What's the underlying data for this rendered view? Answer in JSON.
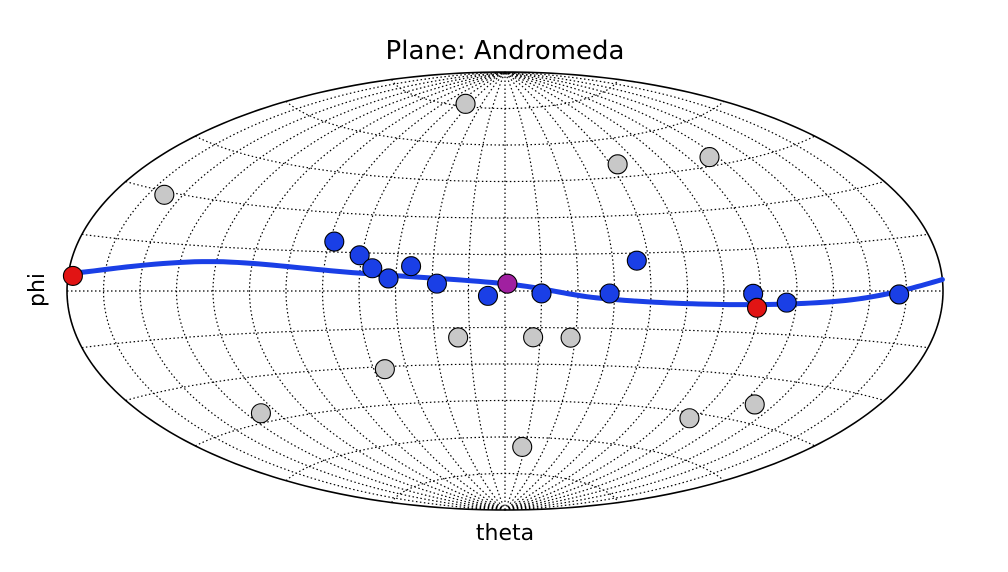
{
  "chart_data": {
    "type": "scatter",
    "projection": "aitoff",
    "title": "Plane: Andromeda",
    "xlabel": "theta",
    "ylabel": "phi",
    "xlim": [
      -180,
      180
    ],
    "ylim": [
      -90,
      90
    ],
    "grid": true,
    "grid_meridian_step_deg": 15,
    "grid_parallel_step_deg": 15,
    "plane_curve": {
      "color": "#1a3fe6",
      "points": [
        [
          -175,
          5
        ],
        [
          -120,
          10
        ],
        [
          -60,
          7
        ],
        [
          0,
          3
        ],
        [
          40,
          -3
        ],
        [
          90,
          -5
        ],
        [
          140,
          -3
        ],
        [
          180,
          3
        ]
      ]
    },
    "series": [
      {
        "color": "#1a3fe6",
        "points": [
          [
            -73,
            19
          ],
          [
            -61,
            14
          ],
          [
            -55,
            9
          ],
          [
            -39,
            10
          ],
          [
            -48,
            5
          ],
          [
            -28,
            3
          ],
          [
            -7,
            -2
          ],
          [
            15,
            -1
          ],
          [
            43,
            -1
          ],
          [
            55,
            12
          ],
          [
            102,
            -1
          ],
          [
            116,
            -4
          ],
          [
            162,
            -1
          ]
        ]
      },
      {
        "color": "#e11414",
        "points": [
          [
            -178,
            4
          ],
          [
            104,
            -6
          ]
        ]
      },
      {
        "color": "#a020a0",
        "points": [
          [
            1,
            3
          ]
        ]
      },
      {
        "color": "#c8c8c8",
        "points": [
          [
            -50,
            76
          ],
          [
            64,
            50
          ],
          [
            116,
            48
          ],
          [
            -158,
            29
          ],
          [
            -20,
            -19
          ],
          [
            12,
            -19
          ],
          [
            28,
            -19
          ],
          [
            -55,
            -31
          ],
          [
            -128,
            -42
          ],
          [
            102,
            -47
          ],
          [
            126,
            -39
          ],
          [
            13,
            -64
          ]
        ]
      }
    ]
  }
}
